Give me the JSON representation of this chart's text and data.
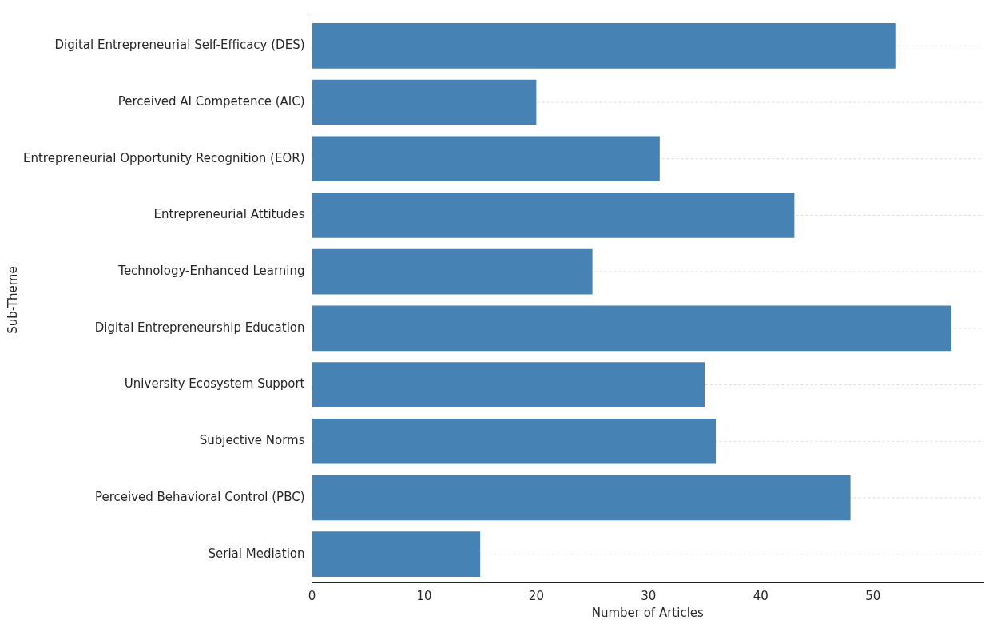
{
  "chart_data": {
    "type": "bar",
    "orientation": "horizontal",
    "xlabel": "Number of Articles",
    "ylabel": "Sub-Theme",
    "categories": [
      "Digital Entrepreneurial Self-Efficacy (DES)",
      "Perceived AI Competence (AIC)",
      "Entrepreneurial Opportunity Recognition (EOR)",
      "Entrepreneurial Attitudes",
      "Technology-Enhanced Learning",
      "Digital Entrepreneurship Education",
      "University Ecosystem Support",
      "Subjective Norms",
      "Perceived Behavioral Control (PBC)",
      "Serial Mediation"
    ],
    "values": [
      52,
      20,
      31,
      43,
      25,
      57,
      35,
      36,
      48,
      15
    ],
    "color": "#4682b4",
    "xlim": [
      0,
      59.85
    ],
    "xticks": [
      0,
      10,
      20,
      30,
      40,
      50
    ],
    "grid": "y",
    "legend": false
  }
}
